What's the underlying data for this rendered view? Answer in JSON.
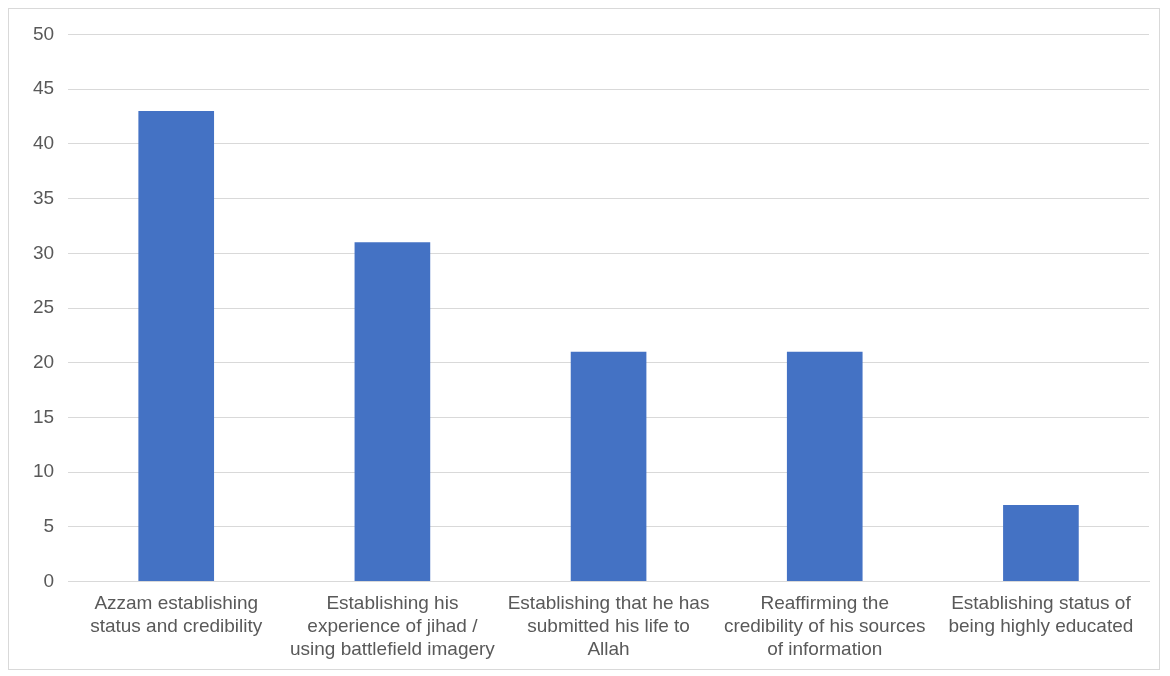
{
  "chart_data": {
    "type": "bar",
    "categories": [
      "Azzam establishing status and credibility",
      "Establishing his experience of jihad / using battlefield imagery",
      "Establishing that he has submitted his life to Allah",
      "Reaffirming the credibility of his sources of information",
      "Establishing status of being highly educated"
    ],
    "values": [
      43,
      31,
      21,
      21,
      7
    ],
    "color": "#4472c4",
    "ylim": [
      0,
      50
    ],
    "yticks": [
      0,
      5,
      10,
      15,
      20,
      25,
      30,
      35,
      40,
      45,
      50
    ],
    "grid": "y",
    "legend": false
  }
}
